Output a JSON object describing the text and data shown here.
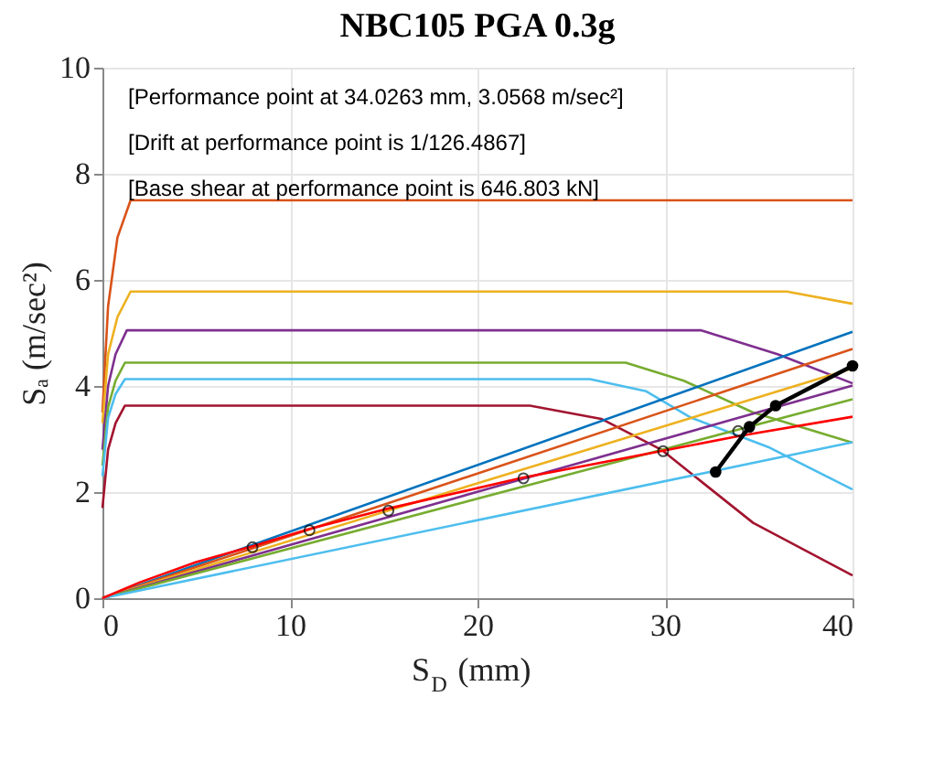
{
  "chart_data": {
    "type": "line",
    "title": "NBC105 PGA 0.3g",
    "xlabel": "S$_{D}$ (mm)",
    "ylabel": "Sₐ (m/sec²)",
    "annotations": [
      "[Performance point at 34.0263 mm, 3.0568 m/sec²]",
      "[Drift at performance point is 1/126.4867]",
      "[Base shear at performance point is 646.803 kN]"
    ],
    "xlim": [
      0,
      40
    ],
    "ylim": [
      0,
      10
    ],
    "xticks": [
      0,
      10,
      20,
      30,
      40
    ],
    "yticks": [
      0,
      2,
      4,
      6,
      8,
      10
    ],
    "grid": true,
    "marker": "none",
    "line_style": "solid",
    "series": [
      {
        "color": "#d95319",
        "x": [
          0,
          0.3,
          0.8,
          1.5,
          40
        ],
        "values": [
          3.5,
          5.5,
          6.8,
          7.5,
          7.5
        ]
      },
      {
        "color": "#edb120",
        "x": [
          0,
          0.3,
          0.8,
          1.5,
          36.5,
          40
        ],
        "values": [
          3.3,
          4.6,
          5.3,
          5.78,
          5.78,
          5.55
        ]
      },
      {
        "color": "#7e2f8e",
        "x": [
          0,
          0.3,
          0.7,
          1.3,
          31.9,
          36,
          40
        ],
        "values": [
          2.8,
          4.0,
          4.6,
          5.05,
          5.05,
          4.6,
          4.05
        ]
      },
      {
        "color": "#77ac30",
        "x": [
          0,
          0.3,
          0.7,
          1.2,
          27.9,
          31,
          34.7,
          40
        ],
        "values": [
          2.5,
          3.6,
          4.1,
          4.44,
          4.44,
          4.1,
          3.5,
          2.93
        ]
      },
      {
        "color": "#4dbeee",
        "x": [
          0,
          0.3,
          0.7,
          1.2,
          26,
          29,
          31.4,
          35.5,
          40
        ],
        "values": [
          2.3,
          3.4,
          3.85,
          4.13,
          4.13,
          3.9,
          3.4,
          2.85,
          2.05
        ]
      },
      {
        "color": "#a2142f",
        "x": [
          0,
          0.3,
          0.7,
          1.2,
          22.8,
          26.6,
          29.8,
          34.7,
          40
        ],
        "values": [
          1.7,
          2.8,
          3.3,
          3.63,
          3.63,
          3.38,
          2.8,
          1.42,
          0.43
        ]
      },
      {
        "color": "#0072bd",
        "x": [
          0,
          40
        ],
        "values": [
          0,
          5.02
        ]
      },
      {
        "color": "#d95319",
        "x": [
          0,
          40
        ],
        "values": [
          0,
          4.7
        ]
      },
      {
        "color": "#edb120",
        "x": [
          0,
          40
        ],
        "values": [
          0,
          4.33
        ]
      },
      {
        "color": "#7e2f8e",
        "x": [
          0,
          40
        ],
        "values": [
          0,
          4.01
        ]
      },
      {
        "color": "#77ac30",
        "x": [
          0,
          40
        ],
        "values": [
          0,
          3.75
        ]
      },
      {
        "color": "#4dbeee",
        "x": [
          0,
          40
        ],
        "values": [
          0,
          2.94
        ]
      },
      {
        "color": "#ff0000",
        "x": [
          0,
          2,
          5,
          8,
          11,
          15,
          22.4,
          29.9,
          34,
          40
        ],
        "values": [
          0,
          0.3,
          0.68,
          0.98,
          1.3,
          1.67,
          2.27,
          2.78,
          3.06,
          3.42
        ]
      },
      {
        "type": "scatter",
        "marker": "circle",
        "color": "#000000",
        "x": [
          8.0,
          11.04,
          15.25,
          22.45,
          29.9,
          33.9
        ],
        "values": [
          0.96,
          1.28,
          1.65,
          2.26,
          2.77,
          3.15
        ]
      },
      {
        "color": "#000000",
        "marker": "circle",
        "x": [
          32.7,
          34.5,
          35.9,
          40
        ],
        "values": [
          2.38,
          3.23,
          3.63,
          4.38
        ]
      }
    ]
  }
}
